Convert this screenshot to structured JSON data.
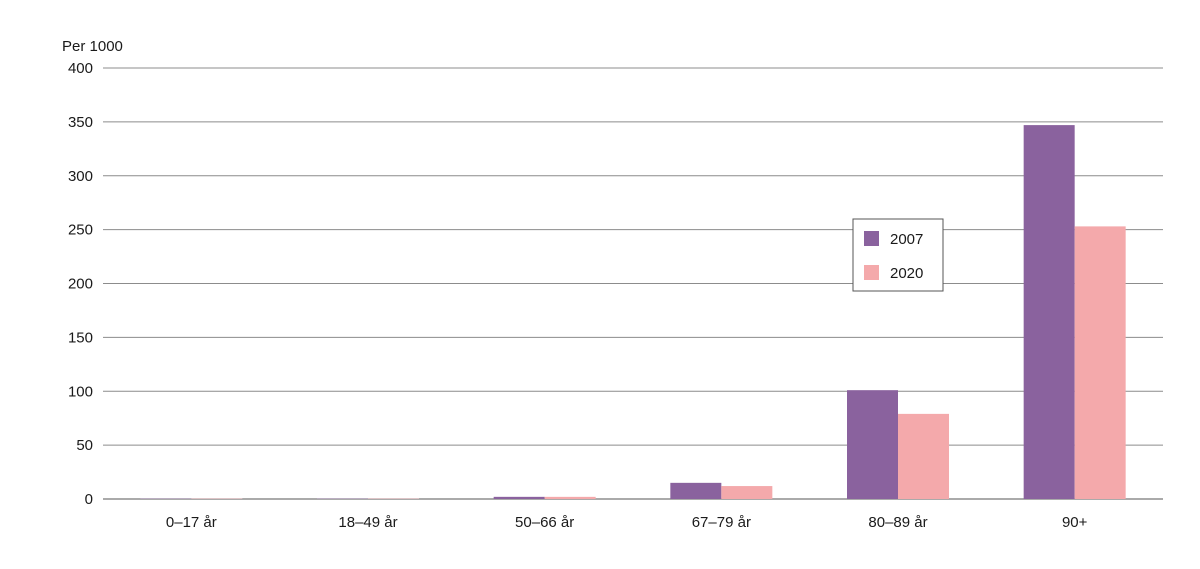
{
  "chart_data": {
    "type": "bar",
    "ylabel": "Per 1000",
    "categories": [
      "0–17 år",
      "18–49 år",
      "50–66 år",
      "67–79 år",
      "80–89 år",
      "90+"
    ],
    "series": [
      {
        "name": "2007",
        "color": "#8a629e",
        "values": [
          0.3,
          0.3,
          2,
          15,
          101,
          347
        ]
      },
      {
        "name": "2020",
        "color": "#f4a9ab",
        "values": [
          0.3,
          0.3,
          2,
          12,
          79,
          253
        ]
      }
    ],
    "ylim": [
      0,
      400
    ],
    "yticks": [
      0,
      50,
      100,
      150,
      200,
      250,
      300,
      350,
      400
    ],
    "grid": true,
    "legend_position": "right, inside plot"
  }
}
